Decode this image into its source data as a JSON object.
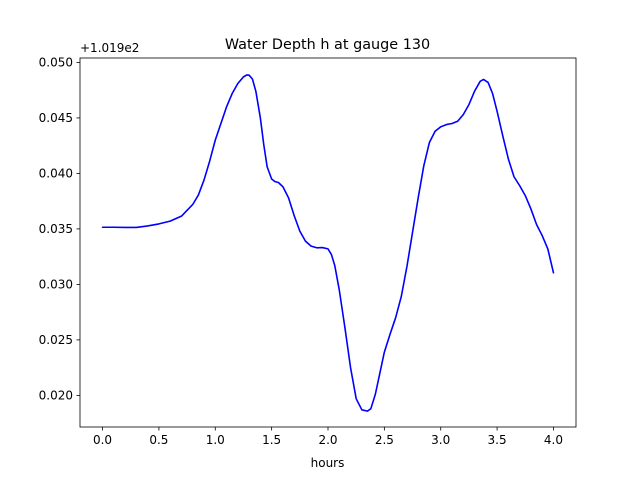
{
  "chart_data": {
    "type": "line",
    "title": "Water Depth h at gauge 130",
    "xlabel": "hours",
    "ylabel": "",
    "offset_text": "+1.019e2",
    "xlim": [
      -0.2,
      4.2
    ],
    "ylim": [
      0.01715,
      0.0504
    ],
    "xticks": [
      0.0,
      0.5,
      1.0,
      1.5,
      2.0,
      2.5,
      3.0,
      3.5,
      4.0
    ],
    "xtick_labels": [
      "0.0",
      "0.5",
      "1.0",
      "1.5",
      "2.0",
      "2.5",
      "3.0",
      "3.5",
      "4.0"
    ],
    "yticks": [
      0.02,
      0.025,
      0.03,
      0.035,
      0.04,
      0.045,
      0.05
    ],
    "ytick_labels": [
      "0.020",
      "0.025",
      "0.030",
      "0.035",
      "0.040",
      "0.045",
      "0.050"
    ],
    "grid": false,
    "legend": "none",
    "series": [
      {
        "color": "#0000ff",
        "x": [
          0.0,
          0.1,
          0.2,
          0.3,
          0.4,
          0.5,
          0.6,
          0.7,
          0.8,
          0.85,
          0.9,
          0.95,
          1.0,
          1.05,
          1.1,
          1.15,
          1.2,
          1.25,
          1.28,
          1.3,
          1.33,
          1.36,
          1.4,
          1.43,
          1.46,
          1.5,
          1.53,
          1.56,
          1.6,
          1.65,
          1.7,
          1.75,
          1.8,
          1.85,
          1.9,
          1.95,
          2.0,
          2.03,
          2.06,
          2.1,
          2.15,
          2.2,
          2.25,
          2.3,
          2.35,
          2.38,
          2.42,
          2.46,
          2.5,
          2.55,
          2.6,
          2.65,
          2.7,
          2.75,
          2.8,
          2.85,
          2.9,
          2.95,
          3.0,
          3.05,
          3.1,
          3.15,
          3.2,
          3.25,
          3.3,
          3.35,
          3.38,
          3.42,
          3.46,
          3.5,
          3.55,
          3.6,
          3.65,
          3.7,
          3.75,
          3.8,
          3.85,
          3.9,
          3.95,
          4.0
        ],
        "y": [
          0.03515,
          0.03515,
          0.03513,
          0.03513,
          0.03527,
          0.03545,
          0.0357,
          0.03615,
          0.0372,
          0.03805,
          0.0394,
          0.0411,
          0.043,
          0.0445,
          0.046,
          0.0472,
          0.0481,
          0.0487,
          0.04887,
          0.04885,
          0.0485,
          0.0474,
          0.045,
          0.0426,
          0.0406,
          0.0395,
          0.03926,
          0.03918,
          0.0388,
          0.0378,
          0.0362,
          0.0348,
          0.0339,
          0.03345,
          0.0333,
          0.03332,
          0.0332,
          0.0327,
          0.0317,
          0.0295,
          0.0261,
          0.0225,
          0.0197,
          0.0187,
          0.01858,
          0.0188,
          0.0201,
          0.022,
          0.0239,
          0.0255,
          0.027,
          0.0289,
          0.0316,
          0.0347,
          0.0378,
          0.0407,
          0.0428,
          0.0438,
          0.0442,
          0.0444,
          0.0445,
          0.0447,
          0.0453,
          0.0462,
          0.0474,
          0.0483,
          0.04847,
          0.0482,
          0.0472,
          0.0456,
          0.0434,
          0.0413,
          0.0397,
          0.0389,
          0.038,
          0.0368,
          0.0354,
          0.0344,
          0.0332,
          0.03105
        ]
      }
    ]
  }
}
